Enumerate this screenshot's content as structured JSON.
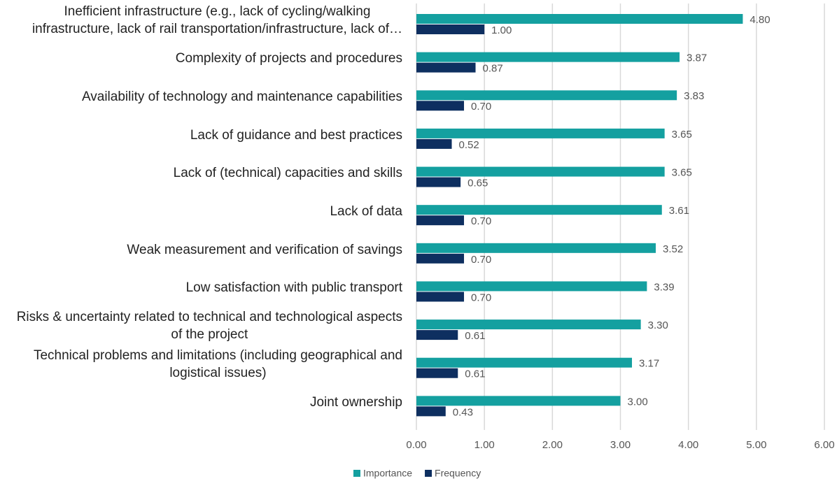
{
  "chart_data": {
    "type": "bar",
    "orientation": "horizontal",
    "categories": [
      "Inefficient infrastructure (e.g., lack of cycling/walking\ninfrastructure, lack of rail transportation/infrastructure, lack of…",
      "Complexity of projects and procedures",
      "Availability of technology and maintenance capabilities",
      "Lack of guidance and best practices",
      "Lack of (technical) capacities and skills",
      "Lack of data",
      "Weak measurement and verification of savings",
      "Low satisfaction with public transport",
      "Risks & uncertainty related to technical and technological aspects\nof the project",
      "Technical problems and limitations (including geographical and\nlogistical issues)",
      "Joint ownership"
    ],
    "series": [
      {
        "name": "Importance",
        "color": "#14a0a0",
        "values": [
          4.8,
          3.87,
          3.83,
          3.65,
          3.65,
          3.61,
          3.52,
          3.39,
          3.3,
          3.17,
          3.0
        ],
        "value_labels": [
          "4.80",
          "3.87",
          "3.83",
          "3.65",
          "3.65",
          "3.61",
          "3.52",
          "3.39",
          "3.30",
          "3.17",
          "3.00"
        ]
      },
      {
        "name": "Frequency",
        "color": "#0e2f60",
        "values": [
          1.0,
          0.87,
          0.7,
          0.52,
          0.65,
          0.7,
          0.7,
          0.7,
          0.61,
          0.61,
          0.43
        ],
        "value_labels": [
          "1.00",
          "0.87",
          "0.70",
          "0.52",
          "0.65",
          "0.70",
          "0.70",
          "0.70",
          "0.61",
          "0.61",
          "0.43"
        ]
      }
    ],
    "xlim": [
      0,
      6
    ],
    "xticks": [
      {
        "value": 0,
        "label": "0.00"
      },
      {
        "value": 1,
        "label": "1.00"
      },
      {
        "value": 2,
        "label": "2.00"
      },
      {
        "value": 3,
        "label": "3.00"
      },
      {
        "value": 4,
        "label": "4.00"
      },
      {
        "value": 5,
        "label": "5.00"
      },
      {
        "value": 6,
        "label": "6.00"
      }
    ],
    "grid": true,
    "legend": "bottom"
  }
}
